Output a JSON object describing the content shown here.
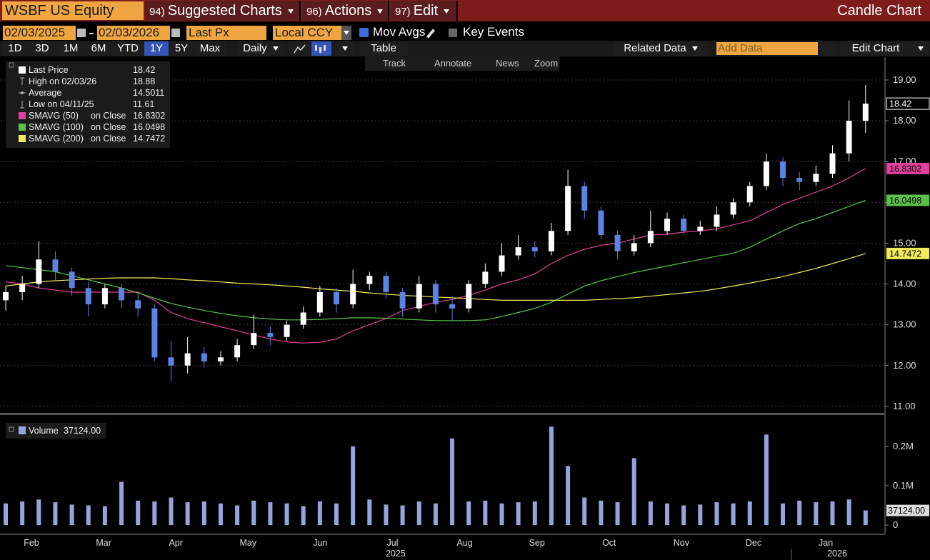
{
  "header": {
    "ticker": "WSBF US Equity",
    "menus": [
      {
        "num": "94)",
        "label": "Suggested Charts"
      },
      {
        "num": "96)",
        "label": "Actions"
      },
      {
        "num": "97)",
        "label": "Edit"
      }
    ],
    "view": "Candle Chart"
  },
  "toolbar": {
    "start_date": "02/03/2025",
    "end_date": "02/03/2026",
    "field": "Last Px",
    "currency": "Local CCY",
    "mov_avgs": "Mov Avgs",
    "key_events": "Key Events",
    "periods": [
      "1D",
      "3D",
      "1M",
      "6M",
      "YTD",
      "1Y",
      "5Y",
      "Max"
    ],
    "selected_period": "1Y",
    "frequency": "Daily",
    "table": "Table",
    "related_data": "Related Data",
    "add_data": "Add Data",
    "edit_chart": "Edit Chart",
    "tools": [
      "Track",
      "Annotate",
      "News",
      "Zoom"
    ]
  },
  "chart_data": [
    {
      "type": "candlestick",
      "open": [
        13.6,
        13.8,
        14.0,
        14.6,
        14.3,
        13.9,
        13.5,
        13.9,
        13.6,
        13.4,
        12.2,
        12.0,
        12.3,
        12.1,
        12.2,
        12.5,
        12.8,
        12.7,
        13.0,
        13.3,
        13.8,
        13.5,
        14.0,
        14.2,
        13.8,
        13.4,
        14.0,
        13.5,
        13.4,
        14.0,
        14.3,
        14.7,
        14.9,
        14.8,
        15.3,
        16.4,
        15.8,
        15.2,
        14.8,
        15.0,
        15.3,
        15.6,
        15.3,
        15.4,
        15.7,
        16.0,
        16.4,
        17.0,
        16.6,
        16.5,
        16.7,
        17.2,
        18.0
      ],
      "high": [
        13.95,
        14.2,
        15.05,
        14.8,
        14.4,
        14.05,
        14.0,
        14.0,
        13.75,
        13.5,
        12.6,
        12.7,
        12.45,
        12.35,
        12.65,
        13.25,
        12.95,
        13.1,
        13.45,
        13.95,
        13.9,
        14.35,
        14.3,
        14.3,
        13.9,
        14.2,
        14.1,
        13.7,
        14.1,
        14.5,
        15.0,
        15.2,
        15.05,
        15.5,
        16.8,
        16.5,
        15.9,
        15.3,
        15.2,
        15.8,
        15.75,
        15.7,
        15.55,
        15.9,
        16.1,
        16.5,
        17.2,
        17.1,
        16.75,
        16.9,
        17.4,
        18.5,
        18.88
      ],
      "low": [
        13.35,
        13.6,
        13.9,
        14.1,
        13.7,
        13.2,
        13.4,
        13.4,
        13.2,
        12.1,
        11.61,
        11.8,
        11.95,
        12.0,
        12.1,
        12.4,
        12.5,
        12.6,
        12.9,
        13.2,
        13.3,
        13.4,
        13.85,
        13.65,
        13.2,
        13.3,
        13.3,
        13.1,
        13.3,
        13.9,
        14.2,
        14.6,
        14.65,
        14.7,
        15.2,
        15.6,
        15.1,
        14.6,
        14.7,
        14.9,
        15.2,
        15.2,
        15.2,
        15.3,
        15.6,
        15.9,
        16.3,
        16.4,
        16.3,
        16.4,
        16.6,
        17.0,
        17.7
      ],
      "close": [
        13.8,
        14.0,
        14.6,
        14.3,
        13.9,
        13.5,
        13.9,
        13.6,
        13.4,
        12.2,
        12.0,
        12.3,
        12.1,
        12.2,
        12.5,
        12.8,
        12.7,
        13.0,
        13.3,
        13.8,
        13.5,
        14.0,
        14.2,
        13.8,
        13.4,
        14.0,
        13.5,
        13.4,
        14.0,
        14.3,
        14.7,
        14.9,
        14.8,
        15.3,
        16.4,
        15.8,
        15.2,
        14.8,
        15.0,
        15.3,
        15.6,
        15.3,
        15.4,
        15.7,
        16.0,
        16.4,
        17.0,
        16.6,
        16.5,
        16.7,
        17.2,
        18.0,
        18.42
      ],
      "up_color": "#ffffff",
      "down_color": "#5b83e3",
      "moving_averages": [
        {
          "name": "SMAVG (50)",
          "color": "#e0409a",
          "values": [
            14.05,
            14.0,
            13.9,
            13.85,
            13.8,
            13.8,
            13.8,
            13.8,
            13.8,
            13.6,
            13.3,
            13.15,
            13.05,
            12.95,
            12.85,
            12.75,
            12.65,
            12.58,
            12.55,
            12.57,
            12.65,
            12.85,
            13.0,
            13.15,
            13.35,
            13.45,
            13.55,
            13.62,
            13.72,
            13.85,
            14.0,
            14.1,
            14.25,
            14.5,
            14.7,
            14.85,
            14.95,
            15.0,
            15.1,
            15.2,
            15.22,
            15.27,
            15.3,
            15.35,
            15.45,
            15.55,
            15.75,
            15.95,
            16.1,
            16.25,
            16.4,
            16.6,
            16.8302
          ]
        },
        {
          "name": "SMAVG (100)",
          "color": "#5cc14a",
          "values": [
            14.45,
            14.4,
            14.35,
            14.3,
            14.2,
            14.1,
            14.0,
            13.9,
            13.78,
            13.65,
            13.52,
            13.43,
            13.35,
            13.28,
            13.22,
            13.17,
            13.14,
            13.12,
            13.12,
            13.13,
            13.15,
            13.17,
            13.17,
            13.16,
            13.14,
            13.12,
            13.1,
            13.1,
            13.1,
            13.12,
            13.2,
            13.3,
            13.4,
            13.55,
            13.75,
            13.95,
            14.08,
            14.18,
            14.28,
            14.36,
            14.44,
            14.52,
            14.6,
            14.68,
            14.75,
            14.9,
            15.1,
            15.3,
            15.48,
            15.6,
            15.75,
            15.9,
            16.0498
          ]
        },
        {
          "name": "SMAVG (200)",
          "color": "#f2ec5c",
          "values": [
            13.95,
            14.0,
            14.05,
            14.08,
            14.1,
            14.12,
            14.14,
            14.15,
            14.15,
            14.15,
            14.13,
            14.1,
            14.08,
            14.05,
            14.02,
            14.0,
            13.98,
            13.95,
            13.92,
            13.88,
            13.85,
            13.82,
            13.78,
            13.75,
            13.72,
            13.7,
            13.68,
            13.66,
            13.64,
            13.62,
            13.6,
            13.6,
            13.6,
            13.6,
            13.6,
            13.6,
            13.62,
            13.64,
            13.66,
            13.7,
            13.74,
            13.78,
            13.82,
            13.88,
            13.95,
            14.02,
            14.1,
            14.18,
            14.28,
            14.38,
            14.5,
            14.62,
            14.7472
          ]
        }
      ],
      "ma_basis": "on Close",
      "legend": {
        "last_label": "Last Price",
        "high_label": "High on 02/03/26",
        "average_label": "Average",
        "average": 14.5011,
        "low_label": "Low on 04/11/25"
      },
      "ylim": [
        10.84,
        19.56
      ],
      "yticks": [
        {
          "value": 11,
          "label": "11.00"
        },
        {
          "value": 12,
          "label": "12.00"
        },
        {
          "value": 13,
          "label": "13.00"
        },
        {
          "value": 14,
          "label": "14.00"
        },
        {
          "value": 15,
          "label": "15.00"
        },
        {
          "value": 16,
          "label": "16.00"
        },
        {
          "value": 17,
          "label": "17.00"
        },
        {
          "value": 18,
          "label": "18.00"
        },
        {
          "value": 19,
          "label": "19.00"
        }
      ],
      "grid": true
    },
    {
      "type": "bar",
      "name": "Volume",
      "color": "#97a3dc",
      "values": [
        55000,
        60000,
        65000,
        58000,
        52000,
        50000,
        48000,
        110000,
        62000,
        60000,
        70000,
        58000,
        60000,
        55000,
        50000,
        62000,
        58000,
        55000,
        48000,
        60000,
        55000,
        200000,
        65000,
        52000,
        50000,
        60000,
        55000,
        220000,
        60000,
        62000,
        55000,
        58000,
        60000,
        250000,
        150000,
        70000,
        62000,
        58000,
        170000,
        60000,
        55000,
        50000,
        52000,
        58000,
        55000,
        60000,
        230000,
        55000,
        62000,
        58000,
        60000,
        65000,
        37124
      ],
      "value_label": {
        "value": 37124,
        "label": "37124.00"
      },
      "ylim": [
        -18000,
        267000
      ],
      "yticks": [
        0,
        {
          "value": 100000,
          "label": "0.1M"
        },
        {
          "value": 200000,
          "label": "0.2M"
        }
      ],
      "x_labels": [
        "Feb",
        "Mar",
        "Apr",
        "May",
        "Jun",
        "Jul",
        "Aug",
        "Sep",
        "Oct",
        "Nov",
        "Dec",
        "Jan"
      ],
      "years": [
        "2025",
        "2026"
      ]
    }
  ]
}
